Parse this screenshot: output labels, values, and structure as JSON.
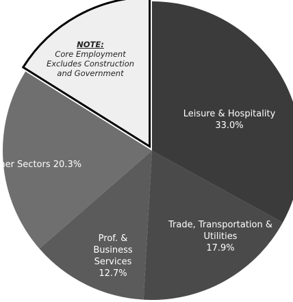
{
  "chart_data": {
    "type": "pie",
    "categories": [
      "Leisure & Hospitality",
      "Trade, Transportation & Utilities",
      "Prof. & Business Services",
      "Other Sectors",
      null
    ],
    "values": [
      33.0,
      17.9,
      12.7,
      20.3,
      16.1
    ],
    "value_labels": [
      "33.0%",
      "17.9%",
      "12.7%",
      "20.3%",
      null
    ],
    "colors": [
      "#3b3b3b",
      "#4a4a4a",
      "#5b5b5b",
      "#6f6f6f",
      "#efefef"
    ],
    "note": {
      "title": "NOTE:",
      "text": "Core Employment Excludes Construction and Government"
    }
  }
}
